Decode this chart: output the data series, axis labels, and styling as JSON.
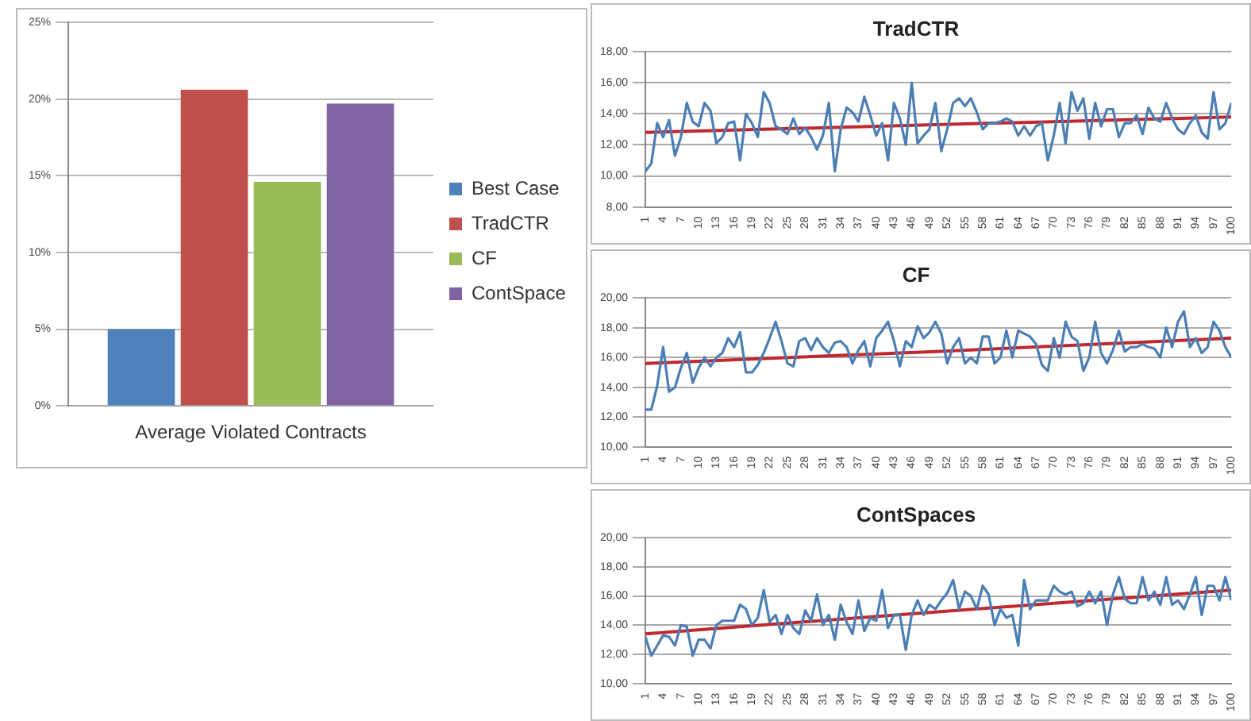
{
  "chart_data": [
    {
      "type": "bar",
      "categories": [
        "Average Violated Contracts"
      ],
      "ylim": [
        0,
        25
      ],
      "yticks": [
        {
          "value": 0,
          "label": "0%"
        },
        {
          "value": 5,
          "label": "5%"
        },
        {
          "value": 10,
          "label": "10%"
        },
        {
          "value": 15,
          "label": "15%"
        },
        {
          "value": 20,
          "label": "20%"
        },
        {
          "value": 25,
          "label": "25%"
        }
      ],
      "grid": "y",
      "legend": "right",
      "series": [
        {
          "name": "Best Case",
          "color": "#4f81bd",
          "values": [
            5
          ]
        },
        {
          "name": "TradCTR",
          "color": "#c0504d",
          "values": [
            20.6
          ]
        },
        {
          "name": "CF",
          "color": "#9bbb59",
          "values": [
            14.6
          ]
        },
        {
          "name": "ContSpace",
          "color": "#8064a2",
          "values": [
            19.7
          ]
        }
      ]
    },
    {
      "type": "line",
      "title": "TradCTR",
      "marker": "none",
      "grid": "y",
      "legend": false,
      "xlim": [
        1,
        100
      ],
      "xticks": [
        1,
        4,
        7,
        10,
        13,
        16,
        19,
        22,
        25,
        28,
        31,
        34,
        37,
        40,
        43,
        46,
        49,
        52,
        55,
        58,
        61,
        64,
        67,
        70,
        73,
        76,
        79,
        82,
        85,
        88,
        91,
        94,
        97,
        100
      ],
      "ylim": [
        8,
        18
      ],
      "yticks": [
        {
          "value": 8,
          "label": "8,00"
        },
        {
          "value": 10,
          "label": "10,00"
        },
        {
          "value": 12,
          "label": "12,00"
        },
        {
          "value": 14,
          "label": "14,00"
        },
        {
          "value": 16,
          "label": "16,00"
        },
        {
          "value": 18,
          "label": "18,00"
        }
      ],
      "x": [
        1,
        2,
        3,
        4,
        5,
        6,
        7,
        8,
        9,
        10,
        11,
        12,
        13,
        14,
        15,
        16,
        17,
        18,
        19,
        20,
        21,
        22,
        23,
        24,
        25,
        26,
        27,
        28,
        29,
        30,
        31,
        32,
        33,
        34,
        35,
        36,
        37,
        38,
        39,
        40,
        41,
        42,
        43,
        44,
        45,
        46,
        47,
        48,
        49,
        50,
        51,
        52,
        53,
        54,
        55,
        56,
        57,
        58,
        59,
        60,
        61,
        62,
        63,
        64,
        65,
        66,
        67,
        68,
        69,
        70,
        71,
        72,
        73,
        74,
        75,
        76,
        77,
        78,
        79,
        80,
        81,
        82,
        83,
        84,
        85,
        86,
        87,
        88,
        89,
        90,
        91,
        92,
        93,
        94,
        95,
        96,
        97,
        98,
        99,
        100
      ],
      "series": [
        {
          "color": "#4a7eb5",
          "values": [
            10.3,
            10.8,
            13.4,
            12.5,
            13.6,
            11.3,
            12.5,
            14.7,
            13.5,
            13.2,
            14.7,
            14.2,
            12.1,
            12.5,
            13.4,
            13.5,
            11.0,
            14.0,
            13.4,
            12.5,
            15.4,
            14.7,
            13.2,
            13.0,
            12.7,
            13.7,
            12.7,
            13.1,
            12.5,
            11.7,
            12.6,
            14.7,
            10.3,
            13.0,
            14.4,
            14.1,
            13.5,
            15.1,
            13.9,
            12.6,
            13.4,
            11.0,
            14.7,
            13.7,
            12.0,
            16.0,
            12.1,
            12.6,
            13.0,
            14.7,
            11.6,
            13.0,
            14.7,
            15.0,
            14.5,
            15.0,
            14.1,
            13.0,
            13.4,
            13.4,
            13.5,
            13.7,
            13.5,
            12.6,
            13.2,
            12.6,
            13.2,
            13.4,
            11.0,
            12.6,
            14.7,
            12.1,
            15.4,
            14.2,
            15.0,
            12.4,
            14.7,
            13.2,
            14.3,
            14.3,
            12.5,
            13.4,
            13.4,
            13.9,
            12.7,
            14.4,
            13.7,
            13.5,
            14.7,
            13.7,
            13.0,
            12.7,
            13.4,
            13.9,
            12.8,
            12.4,
            15.4,
            13.0,
            13.4,
            14.7
          ]
        },
        {
          "type": "line",
          "color": "#c0282d",
          "x": [
            1,
            50,
            100
          ],
          "values": [
            12.8,
            13.3,
            13.8
          ]
        }
      ]
    },
    {
      "type": "line",
      "title": "CF",
      "marker": "none",
      "grid": "y",
      "legend": false,
      "xlim": [
        1,
        100
      ],
      "xticks": [
        1,
        4,
        7,
        10,
        13,
        16,
        19,
        22,
        25,
        28,
        31,
        34,
        37,
        40,
        43,
        46,
        49,
        52,
        55,
        58,
        61,
        64,
        67,
        70,
        73,
        76,
        79,
        82,
        85,
        88,
        91,
        94,
        97,
        100
      ],
      "ylim": [
        10,
        20
      ],
      "yticks": [
        {
          "value": 10,
          "label": "10,00"
        },
        {
          "value": 12,
          "label": "12,00"
        },
        {
          "value": 14,
          "label": "14,00"
        },
        {
          "value": 16,
          "label": "16,00"
        },
        {
          "value": 18,
          "label": "18,00"
        },
        {
          "value": 20,
          "label": "20,00"
        }
      ],
      "x": [
        1,
        2,
        3,
        4,
        5,
        6,
        7,
        8,
        9,
        10,
        11,
        12,
        13,
        14,
        15,
        16,
        17,
        18,
        19,
        20,
        21,
        22,
        23,
        24,
        25,
        26,
        27,
        28,
        29,
        30,
        31,
        32,
        33,
        34,
        35,
        36,
        37,
        38,
        39,
        40,
        41,
        42,
        43,
        44,
        45,
        46,
        47,
        48,
        49,
        50,
        51,
        52,
        53,
        54,
        55,
        56,
        57,
        58,
        59,
        60,
        61,
        62,
        63,
        64,
        65,
        66,
        67,
        68,
        69,
        70,
        71,
        72,
        73,
        74,
        75,
        76,
        77,
        78,
        79,
        80,
        81,
        82,
        83,
        84,
        85,
        86,
        87,
        88,
        89,
        90,
        91,
        92,
        93,
        94,
        95,
        96,
        97,
        98,
        99,
        100
      ],
      "series": [
        {
          "color": "#4a7eb5",
          "values": [
            12.5,
            12.5,
            14.1,
            16.7,
            13.7,
            14.0,
            15.3,
            16.3,
            14.3,
            15.3,
            16.0,
            15.4,
            16.0,
            16.3,
            17.3,
            16.7,
            17.7,
            15.0,
            15.0,
            15.5,
            16.3,
            17.3,
            18.4,
            17.1,
            15.6,
            15.4,
            17.1,
            17.3,
            16.5,
            17.3,
            16.7,
            16.3,
            17.0,
            17.1,
            16.7,
            15.6,
            16.5,
            17.1,
            15.4,
            17.3,
            17.8,
            18.4,
            17.1,
            15.4,
            17.1,
            16.7,
            18.1,
            17.3,
            17.7,
            18.4,
            17.6,
            15.6,
            16.7,
            17.3,
            15.6,
            16.0,
            15.6,
            17.4,
            17.4,
            15.6,
            16.0,
            17.8,
            16.0,
            17.8,
            17.6,
            17.4,
            16.9,
            15.5,
            15.1,
            17.3,
            16.0,
            18.4,
            17.4,
            17.1,
            15.1,
            16.0,
            18.4,
            16.3,
            15.6,
            16.5,
            17.8,
            16.4,
            16.7,
            16.7,
            16.9,
            16.7,
            16.6,
            16.0,
            18.0,
            16.7,
            18.4,
            19.1,
            16.7,
            17.3,
            16.3,
            16.7,
            18.4,
            17.8,
            16.7,
            16.0
          ]
        },
        {
          "type": "line",
          "color": "#c0282d",
          "x": [
            1,
            50,
            100
          ],
          "values": [
            15.6,
            16.4,
            17.3
          ]
        }
      ]
    },
    {
      "type": "line",
      "title": "ContSpaces",
      "marker": "none",
      "grid": "y",
      "legend": false,
      "xlim": [
        1,
        100
      ],
      "xticks": [
        1,
        4,
        7,
        10,
        13,
        16,
        19,
        22,
        25,
        28,
        31,
        34,
        37,
        40,
        43,
        46,
        49,
        52,
        55,
        58,
        61,
        64,
        67,
        70,
        73,
        76,
        79,
        82,
        85,
        88,
        91,
        94,
        97,
        100
      ],
      "ylim": [
        10,
        20
      ],
      "yticks": [
        {
          "value": 10,
          "label": "10,00"
        },
        {
          "value": 12,
          "label": "12,00"
        },
        {
          "value": 14,
          "label": "14,00"
        },
        {
          "value": 16,
          "label": "16,00"
        },
        {
          "value": 18,
          "label": "18,00"
        },
        {
          "value": 20,
          "label": "20,00"
        }
      ],
      "x": [
        1,
        2,
        3,
        4,
        5,
        6,
        7,
        8,
        9,
        10,
        11,
        12,
        13,
        14,
        15,
        16,
        17,
        18,
        19,
        20,
        21,
        22,
        23,
        24,
        25,
        26,
        27,
        28,
        29,
        30,
        31,
        32,
        33,
        34,
        35,
        36,
        37,
        38,
        39,
        40,
        41,
        42,
        43,
        44,
        45,
        46,
        47,
        48,
        49,
        50,
        51,
        52,
        53,
        54,
        55,
        56,
        57,
        58,
        59,
        60,
        61,
        62,
        63,
        64,
        65,
        66,
        67,
        68,
        69,
        70,
        71,
        72,
        73,
        74,
        75,
        76,
        77,
        78,
        79,
        80,
        81,
        82,
        83,
        84,
        85,
        86,
        87,
        88,
        89,
        90,
        91,
        92,
        93,
        94,
        95,
        96,
        97,
        98,
        99,
        100
      ],
      "series": [
        {
          "color": "#4a7eb5",
          "values": [
            13.2,
            11.9,
            12.6,
            13.3,
            13.2,
            12.6,
            14.0,
            13.9,
            11.9,
            13.0,
            13.0,
            12.4,
            14.0,
            14.3,
            14.3,
            14.3,
            15.4,
            15.1,
            14.0,
            14.5,
            16.4,
            14.2,
            14.7,
            13.4,
            14.7,
            13.8,
            13.4,
            15.0,
            14.3,
            16.1,
            14.0,
            14.7,
            13.0,
            15.4,
            14.2,
            13.4,
            15.7,
            13.6,
            14.5,
            14.3,
            16.4,
            13.8,
            14.7,
            14.7,
            12.3,
            14.7,
            15.7,
            14.7,
            15.4,
            15.1,
            15.7,
            16.2,
            17.1,
            15.1,
            16.3,
            16.0,
            15.1,
            16.7,
            16.1,
            14.0,
            15.1,
            14.5,
            14.7,
            12.6,
            17.1,
            15.1,
            15.7,
            15.7,
            15.7,
            16.7,
            16.3,
            16.1,
            16.3,
            15.3,
            15.5,
            16.3,
            15.5,
            16.3,
            14.0,
            16.1,
            17.3,
            15.8,
            15.5,
            15.5,
            17.3,
            15.7,
            16.3,
            15.4,
            17.3,
            15.4,
            15.7,
            15.1,
            16.1,
            17.3,
            14.7,
            16.7,
            16.7,
            15.7,
            17.3,
            15.7
          ]
        },
        {
          "type": "line",
          "color": "#c0282d",
          "x": [
            1,
            50,
            100
          ],
          "values": [
            13.4,
            14.9,
            16.4
          ]
        }
      ]
    }
  ]
}
